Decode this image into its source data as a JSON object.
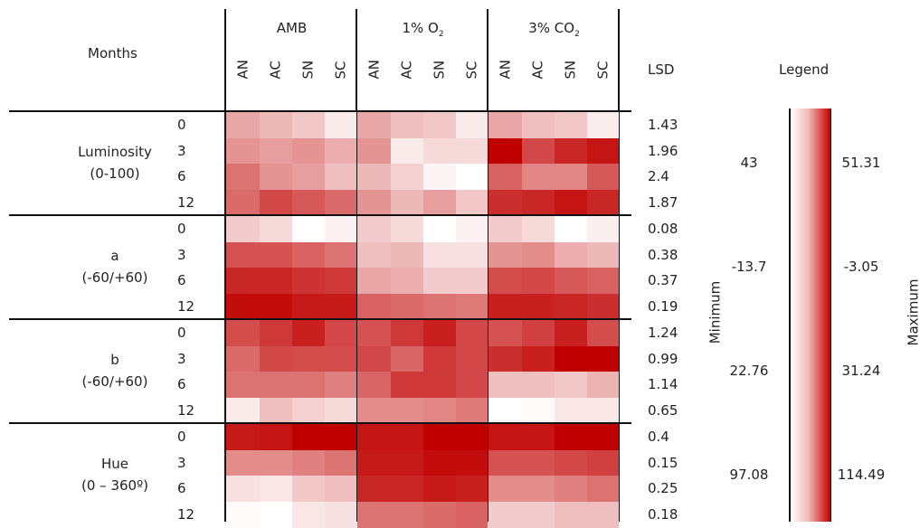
{
  "header": {
    "months_label": "Months",
    "lsd_label": "LSD",
    "legend_label": "Legend",
    "minimum_label": "Minimum",
    "maximum_label": "Maximum"
  },
  "chart_data": {
    "type": "heatmap",
    "groups": [
      {
        "name": "AMB",
        "sub": "",
        "subscript": ""
      },
      {
        "name": "1% O",
        "sub": "2",
        "subscript": "2"
      },
      {
        "name": "3% CO",
        "sub": "2",
        "subscript": "2"
      }
    ],
    "treatments": [
      "AN",
      "AC",
      "SN",
      "SC"
    ],
    "months": [
      "0",
      "3",
      "6",
      "12"
    ],
    "colors": {
      "low": "#ffffff",
      "high": "#c00000"
    },
    "attributes": [
      {
        "name": "Luminosity",
        "range": "(0-100)",
        "legend_min": "43",
        "legend_max": "51.31",
        "lsd": [
          "1.43",
          "1.96",
          "2.4",
          "1.87"
        ],
        "intensity": [
          [
            0.35,
            0.28,
            0.22,
            0.08,
            0.35,
            0.25,
            0.22,
            0.08,
            0.35,
            0.25,
            0.22,
            0.07
          ],
          [
            0.42,
            0.38,
            0.42,
            0.32,
            0.42,
            0.08,
            0.15,
            0.15,
            1.0,
            0.72,
            0.85,
            0.92
          ],
          [
            0.55,
            0.42,
            0.38,
            0.25,
            0.28,
            0.18,
            0.04,
            0.0,
            0.62,
            0.48,
            0.48,
            0.65
          ],
          [
            0.58,
            0.72,
            0.65,
            0.58,
            0.42,
            0.28,
            0.38,
            0.22,
            0.82,
            0.85,
            0.92,
            0.85
          ]
        ]
      },
      {
        "name": "a",
        "range": "(-60/+60)",
        "legend_min": "-13.7",
        "legend_max": "-3.05",
        "lsd": [
          "0.08",
          "0.38",
          "0.37",
          "0.19"
        ],
        "intensity": [
          [
            0.2,
            0.15,
            0.0,
            0.05,
            0.2,
            0.15,
            0.0,
            0.05,
            0.2,
            0.15,
            0.0,
            0.06
          ],
          [
            0.68,
            0.68,
            0.62,
            0.55,
            0.25,
            0.28,
            0.12,
            0.12,
            0.42,
            0.45,
            0.32,
            0.28
          ],
          [
            0.85,
            0.85,
            0.8,
            0.78,
            0.35,
            0.32,
            0.2,
            0.2,
            0.7,
            0.72,
            0.65,
            0.62
          ],
          [
            0.95,
            0.95,
            0.9,
            0.9,
            0.62,
            0.58,
            0.55,
            0.52,
            0.88,
            0.88,
            0.85,
            0.82
          ]
        ]
      },
      {
        "name": "b",
        "range": "(-60/+60)",
        "legend_min": "22.76",
        "legend_max": "31.24",
        "lsd": [
          "1.24",
          "0.99",
          "1.14",
          "0.65"
        ],
        "intensity": [
          [
            0.7,
            0.78,
            0.88,
            0.72,
            0.68,
            0.78,
            0.88,
            0.72,
            0.68,
            0.75,
            0.88,
            0.7
          ],
          [
            0.58,
            0.72,
            0.7,
            0.7,
            0.72,
            0.6,
            0.78,
            0.72,
            0.82,
            0.88,
            1.0,
            1.0
          ],
          [
            0.55,
            0.55,
            0.55,
            0.5,
            0.6,
            0.78,
            0.78,
            0.72,
            0.25,
            0.25,
            0.22,
            0.3
          ],
          [
            0.08,
            0.25,
            0.18,
            0.15,
            0.45,
            0.45,
            0.48,
            0.52,
            0.0,
            0.02,
            0.1,
            0.1
          ]
        ]
      },
      {
        "name": "Hue",
        "range": "(0 – 360º)",
        "legend_min": "97.08",
        "legend_max": "114.49",
        "lsd": [
          "0.4",
          "0.15",
          "0.25",
          "0.18"
        ],
        "intensity": [
          [
            0.9,
            0.92,
            1.0,
            1.0,
            0.92,
            0.92,
            1.0,
            1.0,
            0.92,
            0.92,
            1.0,
            1.0
          ],
          [
            0.45,
            0.45,
            0.5,
            0.55,
            0.9,
            0.9,
            0.95,
            0.95,
            0.68,
            0.68,
            0.72,
            0.75
          ],
          [
            0.12,
            0.1,
            0.22,
            0.25,
            0.85,
            0.85,
            0.9,
            0.88,
            0.45,
            0.45,
            0.5,
            0.55
          ],
          [
            0.02,
            0.0,
            0.1,
            0.12,
            0.55,
            0.55,
            0.58,
            0.62,
            0.2,
            0.2,
            0.25,
            0.25
          ]
        ]
      }
    ]
  }
}
